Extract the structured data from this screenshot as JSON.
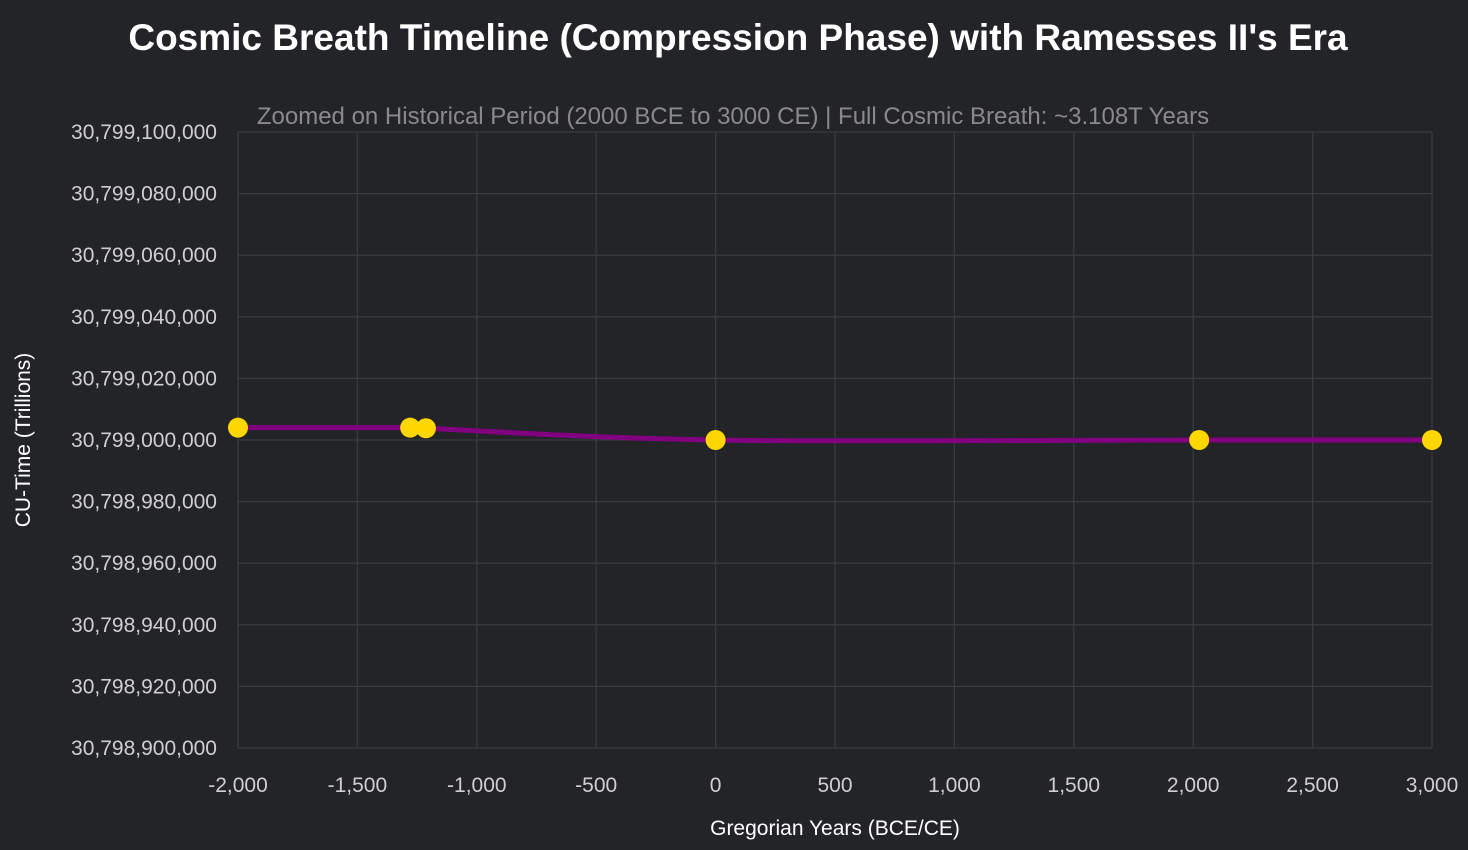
{
  "chart_data": {
    "type": "line",
    "title": "Cosmic Breath Timeline (Compression Phase) with Ramesses II's Era",
    "subtitle": "Zoomed on Historical Period (2000 BCE to 3000 CE) | Full Cosmic Breath: ~3.108T Years",
    "xlabel": "Gregorian Years (BCE/CE)",
    "ylabel": "CU-Time (Trillions)",
    "xlim": [
      -2000,
      3000
    ],
    "ylim": [
      30798900000,
      30799100000
    ],
    "x_ticks": [
      -2000,
      -1500,
      -1000,
      -500,
      0,
      500,
      1000,
      1500,
      2000,
      2500,
      3000
    ],
    "x_tick_labels": [
      "-2,000",
      "-1,500",
      "-1,000",
      "-500",
      "0",
      "500",
      "1,000",
      "1,500",
      "2,000",
      "2,500",
      "3,000"
    ],
    "y_ticks": [
      30798900000,
      30798920000,
      30798940000,
      30798960000,
      30798980000,
      30799000000,
      30799020000,
      30799040000,
      30799060000,
      30799080000,
      30799100000
    ],
    "y_tick_labels": [
      "30,798,900,000",
      "30,798,920,000",
      "30,798,940,000",
      "30,798,960,000",
      "30,798,980,000",
      "30,799,000,000",
      "30,799,020,000",
      "30,799,040,000",
      "30,799,060,000",
      "30,799,080,000",
      "30,799,100,000"
    ],
    "grid": true,
    "legend": false,
    "series": [
      {
        "x": [
          -2000,
          -1279,
          -1213,
          0,
          2025,
          3000
        ],
        "y": [
          30799004000,
          30799004000,
          30799003800,
          30799000000,
          30799000000,
          30799000000
        ]
      }
    ],
    "line_color": "#800080",
    "marker_color": "#FFD700"
  }
}
